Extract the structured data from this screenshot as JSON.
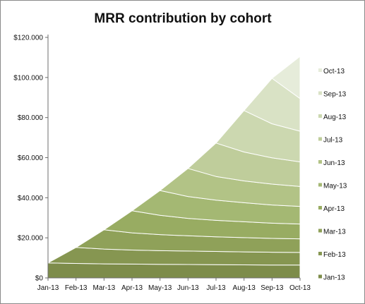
{
  "chart_data": {
    "type": "area",
    "stacked": true,
    "title": "MRR contribution by cohort",
    "categories": [
      "Jan-13",
      "Feb-13",
      "Mar-13",
      "Apr-13",
      "May-13",
      "Jun-13",
      "Jul-13",
      "Aug-13",
      "Sep-13",
      "Oct-13"
    ],
    "ylim": [
      0,
      120000
    ],
    "yticks": [
      0,
      20000,
      40000,
      60000,
      80000,
      100000,
      120000
    ],
    "ytick_labels": [
      "$0",
      "$20.000",
      "$40.000",
      "$60.000",
      "$80.000",
      "$100.000",
      "$120.000"
    ],
    "grid": false,
    "legend_position": "right",
    "series": [
      {
        "name": "Jan-13",
        "color": "#7d8c4a",
        "values": [
          7500,
          7200,
          7000,
          6900,
          6800,
          6700,
          6600,
          6500,
          6400,
          6400
        ]
      },
      {
        "name": "Feb-13",
        "color": "#869651",
        "values": [
          null,
          8000,
          7400,
          7000,
          6800,
          6700,
          6600,
          6500,
          6400,
          6300
        ]
      },
      {
        "name": "Mar-13",
        "color": "#8fa159",
        "values": [
          null,
          null,
          9600,
          8600,
          8000,
          7600,
          7300,
          7100,
          6900,
          6800
        ]
      },
      {
        "name": "Apr-13",
        "color": "#98ac62",
        "values": [
          null,
          null,
          null,
          11000,
          9600,
          8700,
          8200,
          7900,
          7600,
          7400
        ]
      },
      {
        "name": "May-13",
        "color": "#a4b873",
        "values": [
          null,
          null,
          null,
          null,
          12400,
          10900,
          10100,
          9500,
          9100,
          8800
        ]
      },
      {
        "name": "Jun-13",
        "color": "#b2c386",
        "values": [
          null,
          null,
          null,
          null,
          null,
          14000,
          11800,
          10900,
          10400,
          9900
        ]
      },
      {
        "name": "Jul-13",
        "color": "#bfcd9b",
        "values": [
          null,
          null,
          null,
          null,
          null,
          null,
          16700,
          14400,
          13100,
          12300
        ]
      },
      {
        "name": "Aug-13",
        "color": "#ccd8b0",
        "values": [
          null,
          null,
          null,
          null,
          null,
          null,
          null,
          20700,
          17000,
          15300
        ]
      },
      {
        "name": "Sep-13",
        "color": "#d9e2c5",
        "values": [
          null,
          null,
          null,
          null,
          null,
          null,
          null,
          null,
          22700,
          16300
        ]
      },
      {
        "name": "Oct-13",
        "color": "#e6ecda",
        "values": [
          null,
          null,
          null,
          null,
          null,
          null,
          null,
          null,
          null,
          21000
        ]
      }
    ]
  }
}
